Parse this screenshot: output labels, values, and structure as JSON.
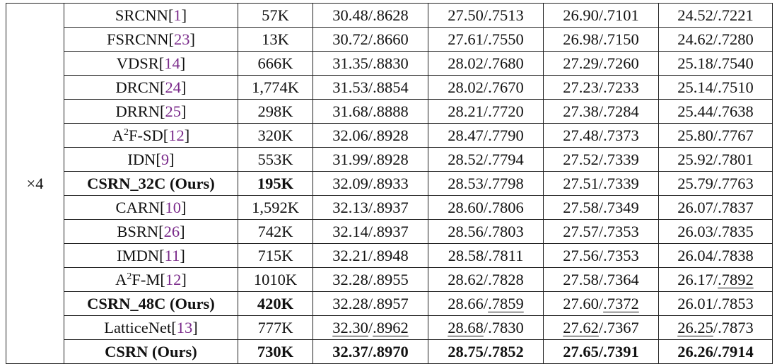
{
  "scale_label": "×4",
  "groups": [
    {
      "rows": [
        {
          "name": "SRCNN",
          "ref": "1",
          "params": "57K",
          "s5": "30.48/.8628",
          "s14": "27.50/.7513",
          "b100": "26.90/.7101",
          "u100": "24.52/.7221"
        },
        {
          "name": "FSRCNN",
          "ref": "23",
          "params": "13K",
          "s5": "30.72/.8660",
          "s14": "27.61/.7550",
          "b100": "26.98/.7150",
          "u100": "24.62/.7280"
        },
        {
          "name": "VDSR",
          "ref": "14",
          "params": "666K",
          "s5": "31.35/.8830",
          "s14": "28.02/.7680",
          "b100": "27.29/.7260",
          "u100": "25.18/.7540"
        },
        {
          "name": "DRCN",
          "ref": "24",
          "params": "1,774K",
          "s5": "31.53/.8854",
          "s14": "28.02/.7670",
          "b100": "27.23/.7233",
          "u100": "25.14/.7510"
        },
        {
          "name": "DRRN",
          "ref": "25",
          "params": "298K",
          "s5": "31.68/.8888",
          "s14": "28.21/.7720",
          "b100": "27.38/.7284",
          "u100": "25.44/.7638"
        },
        {
          "name": "A",
          "sup": "2",
          "name_suffix": "F-SD",
          "ref": "12",
          "params": "320K",
          "s5": "32.06/.8928",
          "s14": "28.47/.7790",
          "b100": "27.48/.7373",
          "u100": "25.80/.7767"
        },
        {
          "name": "IDN",
          "ref": "9",
          "params": "553K",
          "s5": "31.99/.8928",
          "s14": "28.52/.7794",
          "b100": "27.52/.7339",
          "u100": "25.92/.7801"
        },
        {
          "name": "CSRN_32C (Ours)",
          "bold": true,
          "params": "195K",
          "s5": "32.09/.8933",
          "s14": "28.53/.7798",
          "b100": "27.51/.7339",
          "u100": "25.79/.7763"
        }
      ]
    },
    {
      "rows": [
        {
          "name": "CARN",
          "ref": "10",
          "params": "1,592K",
          "s5": "32.13/.8937",
          "s14": "28.60/.7806",
          "b100": "27.58/.7349",
          "u100": "26.07/.7837"
        },
        {
          "name": "BSRN",
          "ref": "26",
          "params": "742K",
          "s5": "32.14/.8937",
          "s14": "28.56/.7803",
          "b100": "27.57/.7353",
          "u100": "26.03/.7835"
        },
        {
          "name": "IMDN",
          "ref": "11",
          "params": "715K",
          "s5": "32.21/.8948",
          "s14": "28.58/.7811",
          "b100": "27.56/.7353",
          "u100": "26.04/.7838"
        },
        {
          "name": "A",
          "sup": "2",
          "name_suffix": "F-M",
          "ref": "12",
          "params": "1010K",
          "s5": "32.28/.8955",
          "s14": "28.62/.7828",
          "b100": "27.58/.7364",
          "u100": "26.17/.7892",
          "u100_ul": "ssim"
        },
        {
          "name": "CSRN_48C (Ours)",
          "bold": true,
          "params": "420K",
          "s5": "32.28/.8957",
          "s14": "28.66/.7859",
          "s14_ul": "ssim",
          "b100": "27.60/.7372",
          "b100_ul": "ssim",
          "u100": "26.01/.7853"
        }
      ]
    },
    {
      "rows": [
        {
          "name": "LatticeNet",
          "ref": "13",
          "params": "777K",
          "s5": "32.30/.8962",
          "s5_ul": "both",
          "s14": "28.68/.7830",
          "s14_ul": "psnr",
          "b100": "27.62/.7367",
          "b100_ul": "psnr",
          "u100": "26.25/.7873",
          "u100_ul": "psnr"
        },
        {
          "name": "CSRN (Ours)",
          "bold": true,
          "params": "730K",
          "s5": "32.37/.8970",
          "s5_bold": true,
          "s14": "28.75/.7852",
          "s14_bold": true,
          "b100": "27.65/.7391",
          "b100_bold": true,
          "u100": "26.26/.7914",
          "u100_bold": true
        }
      ]
    }
  ]
}
